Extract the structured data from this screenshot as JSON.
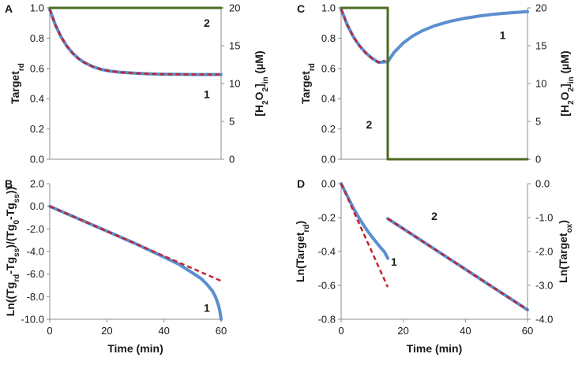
{
  "colors": {
    "blue": "#5b8fcf",
    "red": "#c0262d",
    "green": "#4e6b23",
    "axis": "#8c8c8c"
  },
  "chart_data": [
    {
      "panel": "A",
      "type": "line",
      "ylabel": "Target",
      "ylabel_sub": "rd",
      "y2label_parts": [
        [
          "[H",
          "n"
        ],
        [
          "2",
          "s"
        ],
        [
          "O",
          "n"
        ],
        [
          "2",
          "s"
        ],
        [
          "]",
          "n"
        ],
        [
          "in",
          "s"
        ],
        [
          " (µM)",
          "n"
        ]
      ],
      "xlim": [
        0,
        60
      ],
      "ylim": [
        0,
        1.0
      ],
      "y2lim": [
        0,
        20
      ],
      "xticks": [],
      "xtick_labels": [],
      "yticks": [
        0,
        0.2,
        0.4,
        0.6,
        0.8,
        1.0
      ],
      "ytick_labels": [
        "0.0",
        "0.2",
        "0.4",
        "0.6",
        "0.8",
        "1.0"
      ],
      "y2ticks": [
        0,
        5,
        10,
        15,
        20
      ],
      "y2tick_labels": [
        "0",
        "5",
        "10",
        "15",
        "20"
      ],
      "curves": [
        {
          "name": "Target_rd (1)",
          "color": "blue",
          "width": 4,
          "axis": "y",
          "x": [
            0,
            2,
            4,
            6,
            8,
            10,
            12,
            15,
            18,
            21,
            25,
            30,
            35,
            40,
            45,
            50,
            55,
            60
          ],
          "y": [
            0.99,
            0.886,
            0.807,
            0.747,
            0.701,
            0.666,
            0.64,
            0.612,
            0.594,
            0.583,
            0.574,
            0.568,
            0.564,
            0.562,
            0.561,
            0.56,
            0.56,
            0.56
          ]
        },
        {
          "name": "fit",
          "color": "red",
          "width": 2.5,
          "dash": "6,4",
          "axis": "y",
          "x": [
            0,
            2,
            4,
            6,
            8,
            10,
            12,
            15,
            18,
            21,
            25,
            30,
            35,
            40,
            45,
            50,
            55,
            60
          ],
          "y": [
            0.99,
            0.886,
            0.807,
            0.747,
            0.701,
            0.666,
            0.64,
            0.612,
            0.594,
            0.583,
            0.574,
            0.568,
            0.564,
            0.562,
            0.561,
            0.56,
            0.56,
            0.56
          ]
        },
        {
          "name": "[H2O2]in (2)",
          "color": "green",
          "width": 3,
          "axis": "y2",
          "x": [
            0,
            60
          ],
          "y": [
            20,
            20
          ]
        }
      ],
      "annotations": [
        {
          "text": "2",
          "x": 55,
          "y": 0.9
        },
        {
          "text": "1",
          "x": 55,
          "y": 0.43
        }
      ]
    },
    {
      "panel": "C",
      "type": "line",
      "ylabel": "Target",
      "ylabel_sub": "rd",
      "y2label_parts": [
        [
          "[H",
          "n"
        ],
        [
          "2",
          "s"
        ],
        [
          "O",
          "n"
        ],
        [
          "2",
          "s"
        ],
        [
          "]",
          "n"
        ],
        [
          "in",
          "s"
        ],
        [
          " (µM)",
          "n"
        ]
      ],
      "xlim": [
        0,
        60
      ],
      "ylim": [
        0,
        1.0
      ],
      "y2lim": [
        0,
        20
      ],
      "xticks": [],
      "xtick_labels": [],
      "yticks": [
        0,
        0.2,
        0.4,
        0.6,
        0.8,
        1.0
      ],
      "ytick_labels": [
        "0.0",
        "0.2",
        "0.4",
        "0.6",
        "0.8",
        "1.0"
      ],
      "y2ticks": [
        0,
        5,
        10,
        15,
        20
      ],
      "y2tick_labels": [
        "0",
        "5",
        "10",
        "15",
        "20"
      ],
      "curves": [
        {
          "name": "Target_rd (1)",
          "color": "blue",
          "width": 4,
          "axis": "y",
          "x": [
            0,
            2,
            4,
            6,
            8,
            10,
            12,
            15,
            17,
            20,
            23,
            26,
            30,
            35,
            40,
            45,
            50,
            55,
            60
          ],
          "y": [
            0.99,
            0.886,
            0.807,
            0.747,
            0.701,
            0.666,
            0.64,
            0.645,
            0.705,
            0.768,
            0.814,
            0.848,
            0.881,
            0.911,
            0.932,
            0.948,
            0.96,
            0.968,
            0.975
          ]
        },
        {
          "name": "fit",
          "color": "red",
          "width": 2.5,
          "dash": "6,4",
          "axis": "y",
          "x": [
            0,
            2,
            4,
            6,
            8,
            10,
            12,
            14
          ],
          "y": [
            0.99,
            0.886,
            0.807,
            0.747,
            0.701,
            0.666,
            0.64,
            0.652
          ]
        },
        {
          "name": "[H2O2]in (2)",
          "color": "green",
          "width": 3,
          "axis": "y2",
          "x": [
            0,
            15,
            15,
            60
          ],
          "y": [
            20,
            20,
            0,
            0
          ]
        }
      ],
      "annotations": [
        {
          "text": "1",
          "x": 52,
          "y": 0.82
        },
        {
          "text": "2",
          "x": 9,
          "y": 0.23
        }
      ]
    },
    {
      "panel": "B",
      "type": "line",
      "ylabel_parts": [
        [
          "Ln((Tg",
          "n"
        ],
        [
          "rd",
          "s"
        ],
        [
          "-Tg",
          "n"
        ],
        [
          "ss",
          "s"
        ],
        [
          ")/(Tg",
          "n"
        ],
        [
          "0",
          "s"
        ],
        [
          "-Tg",
          "n"
        ],
        [
          "ss",
          "s"
        ],
        [
          "))",
          "n"
        ]
      ],
      "xlabel": "Time (min)",
      "xlim": [
        0,
        60
      ],
      "ylim": [
        -10,
        2
      ],
      "xticks": [
        0,
        20,
        40,
        60
      ],
      "xtick_labels": [
        "0",
        "20",
        "40",
        "60"
      ],
      "yticks": [
        -10,
        -8,
        -6,
        -4,
        -2,
        0,
        2
      ],
      "ytick_labels": [
        "-10.0",
        "-8.0",
        "-6.0",
        "-4.0",
        "-2.0",
        "0.0",
        "2.0"
      ],
      "curves": [
        {
          "name": "data (1)",
          "color": "blue",
          "width": 4,
          "axis": "y",
          "x": [
            0,
            10,
            20,
            30,
            40,
            45,
            50,
            53,
            55,
            57,
            58,
            59,
            59.5,
            60
          ],
          "y": [
            0,
            -1.1,
            -2.2,
            -3.3,
            -4.5,
            -5.1,
            -5.9,
            -6.4,
            -6.9,
            -7.5,
            -8.0,
            -8.7,
            -9.2,
            -10
          ]
        },
        {
          "name": "linear fit",
          "color": "red",
          "width": 2.5,
          "dash": "6,4",
          "axis": "y",
          "x": [
            0,
            60
          ],
          "y": [
            0,
            -6.6
          ]
        }
      ],
      "annotations": [
        {
          "text": "1",
          "x": 55,
          "y": -9.0
        }
      ]
    },
    {
      "panel": "D",
      "type": "line",
      "ylabel": "Ln(Target",
      "ylabel_sub": "rd",
      "ylabel_end": ")",
      "y2label": "Ln(Target",
      "y2label_sub": "ox",
      "y2label_end": ")",
      "xlabel": "Time (min)",
      "xlim": [
        0,
        60
      ],
      "ylim": [
        -0.8,
        0
      ],
      "y2lim": [
        -4.0,
        0
      ],
      "xticks": [
        0,
        20,
        40,
        60
      ],
      "xtick_labels": [
        "0",
        "20",
        "40",
        "60"
      ],
      "yticks": [
        -0.8,
        -0.6,
        -0.4,
        -0.2,
        0
      ],
      "ytick_labels": [
        "-0.8",
        "-0.6",
        "-0.4",
        "-0.2",
        "0.0"
      ],
      "y2ticks": [
        -4,
        -3,
        -2,
        -1,
        0
      ],
      "y2tick_labels": [
        "-4.0",
        "-3.0",
        "-2.0",
        "-1.0",
        "0.0"
      ],
      "curves": [
        {
          "name": "Ln(Target_rd) (1)",
          "color": "blue",
          "width": 4,
          "axis": "y",
          "x": [
            0,
            2,
            4,
            6,
            8,
            10,
            12,
            14,
            15
          ],
          "y": [
            0,
            -0.074,
            -0.146,
            -0.21,
            -0.266,
            -0.316,
            -0.362,
            -0.404,
            -0.44
          ]
        },
        {
          "name": "fit rd",
          "color": "red",
          "width": 2.5,
          "dash": "6,4",
          "axis": "y",
          "x": [
            0,
            15
          ],
          "y": [
            0,
            -0.61
          ]
        },
        {
          "name": "Ln(Target_ox) (2)",
          "color": "blue",
          "width": 4,
          "axis": "y2",
          "x": [
            15,
            60
          ],
          "y": [
            -1.03,
            -3.72
          ]
        },
        {
          "name": "fit ox",
          "color": "red",
          "width": 2.5,
          "dash": "6,4",
          "axis": "y2",
          "x": [
            15,
            60
          ],
          "y": [
            -1.03,
            -3.72
          ]
        }
      ],
      "annotations": [
        {
          "text": "1",
          "x": 17,
          "y": -0.46
        },
        {
          "text": "2",
          "x": 30,
          "y": -0.19
        }
      ]
    }
  ]
}
